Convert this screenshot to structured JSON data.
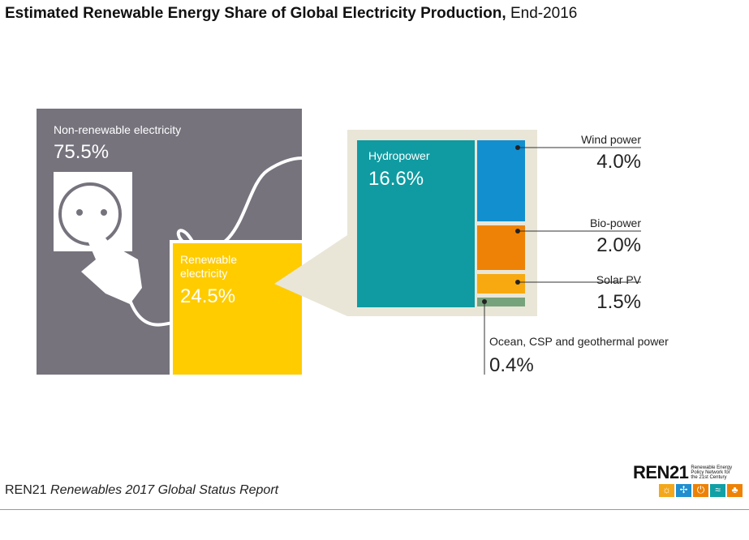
{
  "title": {
    "bold": "Estimated Renewable Energy Share of Global Electricity Production,",
    "normal": "End-2016"
  },
  "chart_data": {
    "type": "treemap",
    "title": "Estimated Renewable Energy Share of Global Electricity Production, End-2016",
    "top_level": [
      {
        "name": "Non-renewable electricity",
        "value": 75.5,
        "label": "75.5%",
        "color": "#76737d"
      },
      {
        "name": "Renewable electricity",
        "value": 24.5,
        "label": "24.5%",
        "color": "#ffcc00"
      }
    ],
    "renewable_breakdown": [
      {
        "name": "Hydropower",
        "value": 16.6,
        "label": "16.6%",
        "color": "#0f9ba1"
      },
      {
        "name": "Wind power",
        "value": 4.0,
        "label": "4.0%",
        "color": "#128fcf"
      },
      {
        "name": "Bio-power",
        "value": 2.0,
        "label": "2.0%",
        "color": "#ee8206"
      },
      {
        "name": "Solar PV",
        "value": 1.5,
        "label": "1.5%",
        "color": "#f7a90f"
      },
      {
        "name": "Ocean, CSP and geothermal power",
        "value": 0.4,
        "label": "0.4%",
        "color": "#77a37c"
      }
    ]
  },
  "footer": {
    "org": "REN21",
    "report": "Renewables 2017 Global Status Report"
  },
  "logo": {
    "text": "REN21",
    "tagline": "Renewable Energy Policy Network for the 21st Century"
  }
}
